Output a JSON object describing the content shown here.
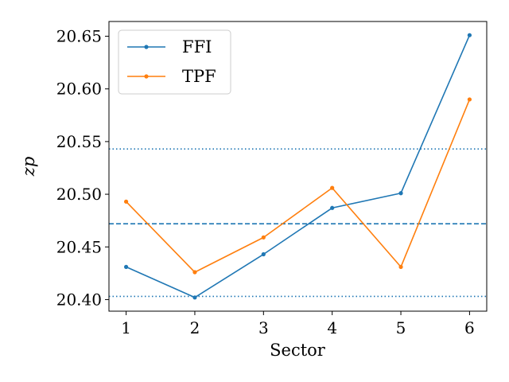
{
  "chart_data": {
    "type": "line",
    "xlabel": "Sector",
    "ylabel": "zp",
    "x": [
      1,
      2,
      3,
      4,
      5,
      6
    ],
    "xticks": [
      "1",
      "2",
      "3",
      "4",
      "5",
      "6"
    ],
    "yticks": [
      "20.40",
      "20.45",
      "20.50",
      "20.55",
      "20.60",
      "20.65"
    ],
    "xlim": [
      0.75,
      6.25
    ],
    "ylim": [
      20.389,
      20.664
    ],
    "grid": false,
    "legend_position": "top-left",
    "series": [
      {
        "name": "FFI",
        "color": "#1f77b4",
        "values": [
          20.431,
          20.402,
          20.443,
          20.487,
          20.501,
          20.651
        ]
      },
      {
        "name": "TPF",
        "color": "#ff7f0e",
        "values": [
          20.493,
          20.426,
          20.459,
          20.506,
          20.431,
          20.59
        ]
      }
    ],
    "reference_lines": [
      {
        "y": 20.472,
        "style": "dashed",
        "color": "#1f77b4"
      },
      {
        "y": 20.543,
        "style": "dotted",
        "color": "#1f77b4"
      },
      {
        "y": 20.403,
        "style": "dotted",
        "color": "#1f77b4"
      }
    ]
  }
}
